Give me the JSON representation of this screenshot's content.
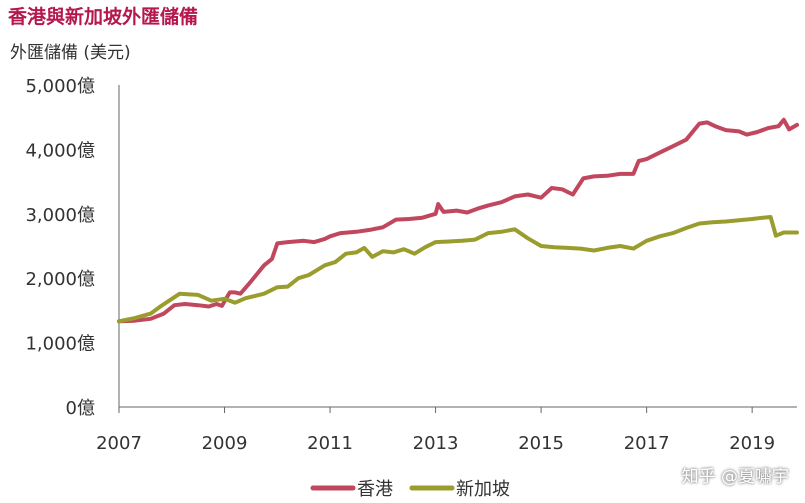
{
  "title": "香港與新加坡外匯儲備",
  "subtitle": "外匯儲備 (美元)",
  "watermark": "知乎 @夏嘯宇",
  "chart_data": {
    "type": "line",
    "title": "香港與新加坡外匯儲備",
    "ylabel": "外匯儲備 (美元)",
    "xlabel": "",
    "xlim": [
      2007,
      2019.85
    ],
    "ylim": [
      0,
      5000
    ],
    "x_ticks": [
      "2007",
      "2009",
      "2011",
      "2013",
      "2015",
      "2017",
      "2019"
    ],
    "y_ticks": [
      "0億",
      "1,000億",
      "2,000億",
      "3,000億",
      "4,000億",
      "5,000億"
    ],
    "grid": false,
    "legend_position": "bottom-center",
    "series": [
      {
        "name": "香港",
        "color": "#c1475f",
        "points": [
          [
            2007.0,
            1330
          ],
          [
            2007.3,
            1340
          ],
          [
            2007.6,
            1370
          ],
          [
            2007.85,
            1450
          ],
          [
            2008.05,
            1580
          ],
          [
            2008.25,
            1600
          ],
          [
            2008.5,
            1580
          ],
          [
            2008.7,
            1560
          ],
          [
            2008.85,
            1600
          ],
          [
            2008.95,
            1570
          ],
          [
            2009.0,
            1640
          ],
          [
            2009.1,
            1780
          ],
          [
            2009.2,
            1780
          ],
          [
            2009.3,
            1760
          ],
          [
            2009.45,
            1900
          ],
          [
            2009.6,
            2050
          ],
          [
            2009.75,
            2200
          ],
          [
            2009.9,
            2300
          ],
          [
            2010.0,
            2540
          ],
          [
            2010.2,
            2560
          ],
          [
            2010.5,
            2580
          ],
          [
            2010.7,
            2560
          ],
          [
            2010.9,
            2610
          ],
          [
            2011.0,
            2650
          ],
          [
            2011.2,
            2700
          ],
          [
            2011.5,
            2720
          ],
          [
            2011.75,
            2750
          ],
          [
            2012.0,
            2790
          ],
          [
            2012.25,
            2910
          ],
          [
            2012.5,
            2920
          ],
          [
            2012.75,
            2940
          ],
          [
            2013.0,
            3000
          ],
          [
            2013.05,
            3150
          ],
          [
            2013.15,
            3030
          ],
          [
            2013.4,
            3050
          ],
          [
            2013.6,
            3020
          ],
          [
            2013.8,
            3080
          ],
          [
            2014.0,
            3130
          ],
          [
            2014.25,
            3180
          ],
          [
            2014.5,
            3270
          ],
          [
            2014.75,
            3300
          ],
          [
            2015.0,
            3250
          ],
          [
            2015.2,
            3400
          ],
          [
            2015.4,
            3380
          ],
          [
            2015.6,
            3300
          ],
          [
            2015.8,
            3550
          ],
          [
            2016.0,
            3580
          ],
          [
            2016.25,
            3590
          ],
          [
            2016.5,
            3620
          ],
          [
            2016.75,
            3620
          ],
          [
            2016.85,
            3820
          ],
          [
            2017.0,
            3850
          ],
          [
            2017.25,
            3950
          ],
          [
            2017.5,
            4050
          ],
          [
            2017.75,
            4150
          ],
          [
            2018.0,
            4400
          ],
          [
            2018.15,
            4420
          ],
          [
            2018.3,
            4360
          ],
          [
            2018.5,
            4300
          ],
          [
            2018.75,
            4280
          ],
          [
            2018.9,
            4230
          ],
          [
            2019.1,
            4270
          ],
          [
            2019.3,
            4330
          ],
          [
            2019.5,
            4360
          ],
          [
            2019.6,
            4460
          ],
          [
            2019.7,
            4310
          ],
          [
            2019.85,
            4380
          ]
        ]
      },
      {
        "name": "新加坡",
        "color": "#9a9d2e",
        "points": [
          [
            2007.0,
            1330
          ],
          [
            2007.3,
            1380
          ],
          [
            2007.6,
            1450
          ],
          [
            2007.8,
            1570
          ],
          [
            2007.95,
            1650
          ],
          [
            2008.15,
            1760
          ],
          [
            2008.3,
            1750
          ],
          [
            2008.5,
            1740
          ],
          [
            2008.75,
            1650
          ],
          [
            2009.0,
            1680
          ],
          [
            2009.2,
            1620
          ],
          [
            2009.4,
            1690
          ],
          [
            2009.75,
            1760
          ],
          [
            2010.0,
            1860
          ],
          [
            2010.2,
            1870
          ],
          [
            2010.4,
            2000
          ],
          [
            2010.6,
            2050
          ],
          [
            2010.9,
            2200
          ],
          [
            2011.1,
            2250
          ],
          [
            2011.3,
            2380
          ],
          [
            2011.5,
            2400
          ],
          [
            2011.65,
            2470
          ],
          [
            2011.8,
            2330
          ],
          [
            2012.0,
            2420
          ],
          [
            2012.2,
            2400
          ],
          [
            2012.4,
            2450
          ],
          [
            2012.6,
            2380
          ],
          [
            2012.8,
            2480
          ],
          [
            2013.0,
            2560
          ],
          [
            2013.25,
            2570
          ],
          [
            2013.5,
            2580
          ],
          [
            2013.75,
            2600
          ],
          [
            2014.0,
            2700
          ],
          [
            2014.25,
            2720
          ],
          [
            2014.5,
            2760
          ],
          [
            2014.75,
            2620
          ],
          [
            2015.0,
            2500
          ],
          [
            2015.25,
            2480
          ],
          [
            2015.5,
            2470
          ],
          [
            2015.75,
            2460
          ],
          [
            2016.0,
            2430
          ],
          [
            2016.25,
            2470
          ],
          [
            2016.5,
            2500
          ],
          [
            2016.75,
            2460
          ],
          [
            2017.0,
            2580
          ],
          [
            2017.25,
            2650
          ],
          [
            2017.5,
            2700
          ],
          [
            2017.75,
            2780
          ],
          [
            2018.0,
            2850
          ],
          [
            2018.25,
            2870
          ],
          [
            2018.5,
            2880
          ],
          [
            2018.75,
            2900
          ],
          [
            2019.0,
            2920
          ],
          [
            2019.2,
            2940
          ],
          [
            2019.35,
            2950
          ],
          [
            2019.45,
            2660
          ],
          [
            2019.6,
            2710
          ],
          [
            2019.85,
            2710
          ]
        ]
      }
    ]
  }
}
